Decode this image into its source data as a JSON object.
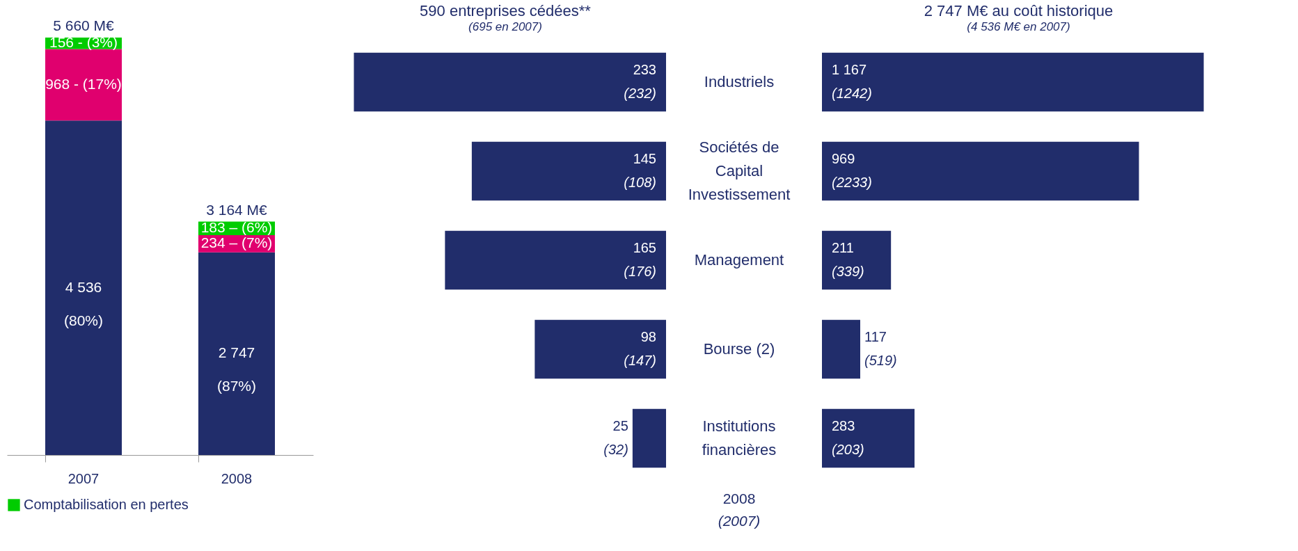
{
  "chart_data": [
    {
      "type": "bar",
      "stacked": true,
      "categories": [
        "2007",
        "2008"
      ],
      "tick_labels": "x",
      "legend": "bottom",
      "series": [
        {
          "color": "#212d6b",
          "values": [
            4536,
            2747
          ],
          "value_labels": [
            "4 536\n(80%)",
            "2 747\n(87%)"
          ]
        },
        {
          "color": "#e0006e",
          "values": [
            968,
            234
          ],
          "value_labels": [
            "968 - (17%)",
            "234 – (7%)"
          ]
        },
        {
          "name": "Comptabilisation en pertes",
          "color": "#00cc00",
          "values": [
            156,
            183
          ],
          "value_labels": [
            "156 - (3%)",
            "183 – (6%)"
          ]
        }
      ],
      "totals": [
        "5 660 M€",
        "3 164 M€"
      ]
    },
    {
      "type": "bar",
      "orientation": "horizontal",
      "title": "590 entreprises cédées**",
      "subtitle": "(695 en 2007)",
      "categories": [
        "Industriels",
        "Sociétés de Capital Investissement",
        "Management",
        "Bourse (2)",
        "Institutions financières"
      ],
      "tick_labels": "y",
      "color": "#212d6b",
      "values": [
        233,
        145,
        165,
        98,
        25
      ],
      "data_labels": true,
      "annotations": [
        "(232)",
        "(108)",
        "(176)",
        "(147)",
        "(32)",
        "2008",
        "(2007)"
      ]
    },
    {
      "type": "bar",
      "orientation": "horizontal",
      "title": "2 747 M€ au coût historique",
      "subtitle": "(4 536 M€ en 2007)",
      "categories": [
        "Industriels",
        "Sociétés de Capital Investissement",
        "Management",
        "Bourse (2)",
        "Institutions financières"
      ],
      "tick_labels": false,
      "color": "#212d6b",
      "values": [
        1167,
        969,
        211,
        117,
        283
      ],
      "data_labels": true,
      "annotations": [
        "(1242)",
        "(2233)",
        "(339)",
        "(519)",
        "(203)"
      ]
    }
  ]
}
